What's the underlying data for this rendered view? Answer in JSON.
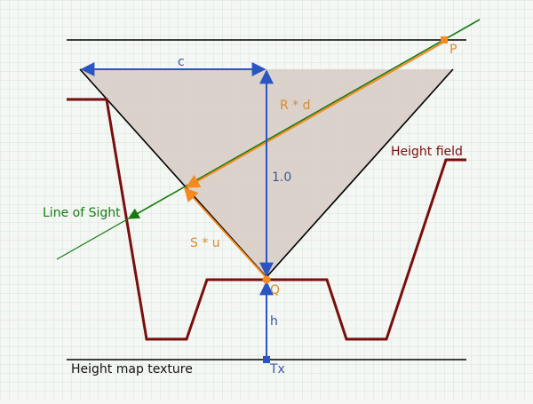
{
  "labels": {
    "c": "c",
    "rd": "R * d",
    "one": "1.0",
    "height_field": "Height field",
    "line_of_sight": "Line of Sight",
    "su": "S * u",
    "q": "Q",
    "p": "P",
    "h": "h",
    "height_map_texture": "Height map texture",
    "tx": "Tx"
  },
  "colors": {
    "grid": "#cfe2d6",
    "black": "#000000",
    "cone_fill": "#d9cdc8",
    "height_field": "#7a0e0e",
    "orange": "#f58a1f",
    "green": "#1a7a12",
    "blue": "#2a55c2",
    "label_blue": "#3e55a0",
    "label_orange": "#d98a2e"
  }
}
